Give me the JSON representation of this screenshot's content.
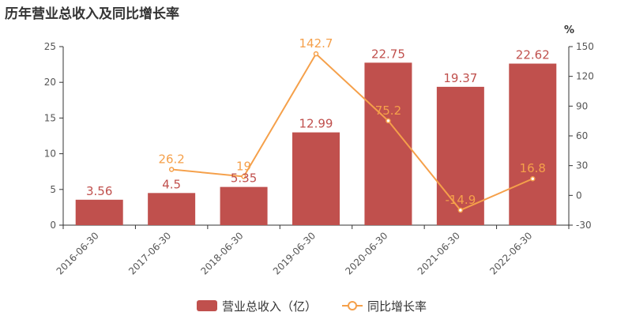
{
  "title": "历年营业总收入及同比增长率",
  "chart_data": {
    "type": "bar",
    "categories": [
      "2016-06-30",
      "2017-06-30",
      "2018-06-30",
      "2019-06-30",
      "2020-06-30",
      "2021-06-30",
      "2022-06-30"
    ],
    "series": [
      {
        "name": "营业总收入（亿）",
        "type": "bar",
        "axis": "left",
        "values": [
          3.56,
          4.5,
          5.35,
          12.99,
          22.75,
          19.37,
          22.62
        ],
        "labels": [
          "3.56",
          "4.5",
          "5.35",
          "12.99",
          "22.75",
          "19.37",
          "22.62"
        ],
        "color": "#c0504d"
      },
      {
        "name": "同比增长率",
        "type": "line",
        "axis": "right",
        "values": [
          null,
          26.2,
          19,
          142.7,
          75.2,
          -14.9,
          16.8
        ],
        "labels": [
          "",
          "26.2",
          "19",
          "142.7",
          "75.2",
          "-14.9",
          "16.8"
        ],
        "color": "#f5a04a"
      }
    ],
    "y_left": {
      "min": 0,
      "max": 25,
      "ticks": [
        0,
        5,
        10,
        15,
        20,
        25
      ]
    },
    "y_right": {
      "min": -30,
      "max": 150,
      "ticks": [
        -30,
        0,
        30,
        60,
        90,
        120,
        150
      ],
      "unit": "%"
    },
    "grid": false,
    "legend": "bottom-center"
  }
}
